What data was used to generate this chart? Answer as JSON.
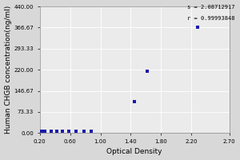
{
  "xlabel": "Optical Density",
  "ylabel": "Human CHGB concentration(ng/ml)",
  "annotation_line1": "s = 2.08712917",
  "annotation_line2": "r = 0.99993848",
  "x_data": [
    0.22,
    0.27,
    0.35,
    0.42,
    0.5,
    0.58,
    0.68,
    0.78,
    0.88,
    1.45,
    1.62,
    2.28
  ],
  "y_data": [
    5.0,
    5.0,
    5.0,
    5.0,
    5.0,
    5.0,
    5.5,
    5.5,
    6.0,
    110.0,
    216.0,
    366.67
  ],
  "xlim": [
    0.2,
    2.7
  ],
  "ylim": [
    0.0,
    440.0
  ],
  "yticks": [
    0.0,
    73.33,
    146.67,
    220.0,
    293.33,
    366.67,
    440.0
  ],
  "ytick_labels": [
    "0.00",
    "73.33",
    "146.67",
    "220.00",
    "293.33",
    "366.67",
    "440.00"
  ],
  "xticks": [
    0.2,
    0.6,
    1.0,
    1.4,
    1.8,
    2.2,
    2.7
  ],
  "xtick_labels": [
    "0.20",
    "0.60",
    "1.00",
    "1.40",
    "1.80",
    "2.20",
    "2.70"
  ],
  "dot_color": "#1a1aaa",
  "curve_color": "#cc5533",
  "plot_bg_color": "#ebebeb",
  "fig_bg_color": "#d8d8d8",
  "grid_color": "#ffffff",
  "annotation_fontsize": 5.0,
  "label_fontsize": 6.5,
  "tick_fontsize": 5.0
}
